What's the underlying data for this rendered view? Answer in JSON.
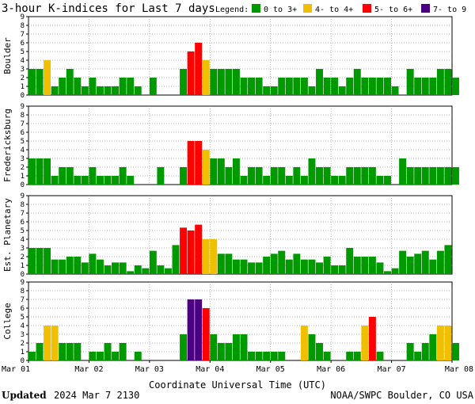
{
  "header": {
    "title": "3-hour K-indices for Last 7 days",
    "legend_title": "Legend:"
  },
  "legend": [
    {
      "label": "0 to 3+",
      "color": "#009900"
    },
    {
      "label": "4- to 4+",
      "color": "#f0c000"
    },
    {
      "label": "5- to 6+",
      "color": "#ff0000"
    },
    {
      "label": "7- to 9",
      "color": "#4b0082"
    }
  ],
  "footer": {
    "updated_label": "Updated",
    "updated_value": "2024 Mar  7 2130",
    "source": "NOAA/SWPC Boulder, CO USA"
  },
  "chart_data": {
    "type": "bar",
    "xlabel": "Coordinate Universal Time (UTC)",
    "x_ticks": [
      "Mar 01",
      "Mar 02",
      "Mar 03",
      "Mar 04",
      "Mar 05",
      "Mar 06",
      "Mar 07",
      "Mar 08"
    ],
    "ylim": [
      0,
      9
    ],
    "y_ticks": [
      0,
      1,
      2,
      3,
      4,
      5,
      6,
      7,
      8,
      9
    ],
    "intervals_per_day": 8,
    "grid": true,
    "color_scale": [
      {
        "min": 0,
        "max": 3.99,
        "color": "#009900"
      },
      {
        "min": 4,
        "max": 4.99,
        "color": "#f0c000"
      },
      {
        "min": 5,
        "max": 6.99,
        "color": "#ff0000"
      },
      {
        "min": 7,
        "max": 9,
        "color": "#4b0082"
      }
    ],
    "series": [
      {
        "name": "Boulder",
        "values": [
          3,
          3,
          4,
          1,
          2,
          3,
          2,
          1,
          2,
          1,
          1,
          1,
          2,
          2,
          1,
          0,
          2,
          0,
          0,
          0,
          3,
          5,
          6,
          4,
          3,
          3,
          3,
          3,
          2,
          2,
          2,
          1,
          1,
          2,
          2,
          2,
          2,
          1,
          3,
          2,
          2,
          1,
          2,
          3,
          2,
          2,
          2,
          2,
          1,
          0,
          3,
          2,
          2,
          2,
          3,
          3,
          2,
          0
        ]
      },
      {
        "name": "Fredericksburg",
        "values": [
          3,
          3,
          3,
          1,
          2,
          2,
          1,
          1,
          2,
          1,
          1,
          1,
          2,
          1,
          0,
          0,
          0,
          2,
          0,
          0,
          2,
          5,
          5,
          4,
          3,
          3,
          2,
          3,
          1,
          2,
          2,
          1,
          2,
          2,
          1,
          2,
          1,
          3,
          2,
          2,
          1,
          1,
          2,
          2,
          2,
          2,
          1,
          1,
          0,
          3,
          2,
          2,
          2,
          2,
          2,
          2,
          2,
          0
        ]
      },
      {
        "name": "Est. Planetary",
        "values": [
          3,
          3,
          3,
          1.67,
          1.67,
          2,
          2,
          1.33,
          2.33,
          1.67,
          1,
          1.33,
          1.33,
          0.33,
          1,
          0.67,
          2.67,
          1,
          0.67,
          3.33,
          5.33,
          5,
          5.67,
          4,
          4,
          2.33,
          2.33,
          1.67,
          1.67,
          1.33,
          1.33,
          2,
          2.33,
          2.67,
          1.67,
          2.33,
          1.67,
          1.67,
          1.33,
          2,
          1,
          1,
          3,
          2,
          2,
          2,
          1.33,
          0.33,
          0.67,
          2.67,
          2,
          2.33,
          2.67,
          1.67,
          2.67,
          3.33
        ]
      },
      {
        "name": "College",
        "values": [
          1,
          2,
          4,
          4,
          2,
          2,
          2,
          0,
          1,
          1,
          2,
          1,
          2,
          0,
          1,
          0,
          0,
          0,
          0,
          0,
          3,
          7,
          7,
          6,
          3,
          2,
          2,
          3,
          3,
          1,
          1,
          1,
          1,
          1,
          0,
          0,
          4,
          3,
          2,
          1,
          0,
          0,
          1,
          1,
          4,
          5,
          1,
          0,
          0,
          0,
          2,
          1,
          2,
          3,
          4,
          4,
          2,
          0
        ]
      }
    ]
  }
}
